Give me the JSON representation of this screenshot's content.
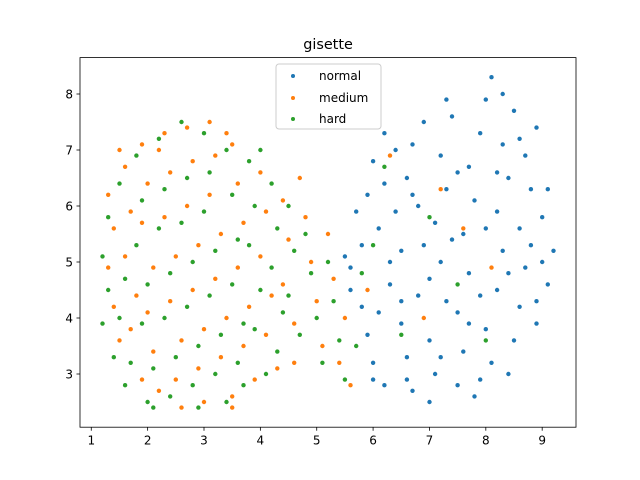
{
  "chart_data": {
    "type": "scatter",
    "title": "gisette",
    "xlabel": "",
    "ylabel": "",
    "xlim": [
      0.8,
      9.6
    ],
    "ylim": [
      2.05,
      8.65
    ],
    "xticks": [
      1,
      2,
      3,
      4,
      5,
      6,
      7,
      8,
      9
    ],
    "yticks": [
      3,
      4,
      5,
      6,
      7,
      8
    ],
    "grid": false,
    "legend_position": "upper center",
    "series": [
      {
        "name": "normal",
        "color": "#1f77b4",
        "points": [
          [
            5.6,
            4.9
          ],
          [
            5.8,
            4.2
          ],
          [
            5.9,
            3.7
          ],
          [
            6.0,
            3.2
          ],
          [
            6.2,
            2.8
          ],
          [
            6.1,
            5.6
          ],
          [
            5.9,
            6.2
          ],
          [
            6.0,
            6.8
          ],
          [
            6.2,
            7.3
          ],
          [
            5.8,
            5.3
          ],
          [
            6.3,
            4.6
          ],
          [
            6.5,
            3.9
          ],
          [
            6.6,
            3.3
          ],
          [
            6.7,
            2.7
          ],
          [
            6.5,
            5.2
          ],
          [
            6.4,
            5.9
          ],
          [
            6.6,
            6.5
          ],
          [
            6.7,
            7.1
          ],
          [
            6.9,
            7.5
          ],
          [
            6.8,
            4.4
          ],
          [
            7.0,
            3.6
          ],
          [
            7.1,
            3.0
          ],
          [
            7.0,
            2.5
          ],
          [
            7.2,
            5.0
          ],
          [
            7.1,
            5.7
          ],
          [
            7.3,
            6.3
          ],
          [
            7.2,
            6.9
          ],
          [
            7.4,
            7.6
          ],
          [
            7.5,
            4.1
          ],
          [
            7.6,
            3.4
          ],
          [
            7.5,
            2.8
          ],
          [
            7.7,
            4.8
          ],
          [
            7.6,
            5.5
          ],
          [
            7.8,
            6.1
          ],
          [
            7.7,
            6.7
          ],
          [
            7.9,
            7.3
          ],
          [
            8.0,
            7.9
          ],
          [
            8.1,
            8.3
          ],
          [
            8.2,
            4.5
          ],
          [
            8.0,
            3.8
          ],
          [
            8.1,
            3.2
          ],
          [
            8.3,
            5.2
          ],
          [
            8.2,
            5.9
          ],
          [
            8.4,
            6.5
          ],
          [
            8.3,
            7.1
          ],
          [
            8.5,
            7.7
          ],
          [
            8.6,
            4.2
          ],
          [
            8.5,
            3.6
          ],
          [
            8.7,
            4.9
          ],
          [
            8.6,
            5.6
          ],
          [
            8.8,
            6.3
          ],
          [
            8.7,
            6.9
          ],
          [
            8.9,
            7.4
          ],
          [
            9.0,
            5.0
          ],
          [
            9.1,
            4.6
          ],
          [
            9.0,
            5.8
          ],
          [
            9.1,
            6.3
          ],
          [
            8.9,
            3.9
          ],
          [
            8.4,
            3.0
          ],
          [
            7.8,
            2.6
          ],
          [
            6.9,
            5.3
          ],
          [
            7.4,
            5.4
          ],
          [
            6.3,
            5.0
          ],
          [
            6.8,
            6.0
          ],
          [
            7.9,
            4.4
          ],
          [
            8.8,
            5.3
          ],
          [
            6.1,
            4.1
          ],
          [
            5.7,
            5.9
          ],
          [
            6.4,
            7.0
          ],
          [
            7.3,
            7.9
          ],
          [
            7.0,
            4.7
          ],
          [
            7.7,
            3.9
          ],
          [
            8.2,
            6.6
          ],
          [
            8.9,
            4.3
          ],
          [
            6.6,
            2.9
          ],
          [
            7.2,
            3.3
          ],
          [
            8.6,
            7.2
          ],
          [
            8.0,
            5.6
          ],
          [
            7.5,
            6.6
          ],
          [
            6.2,
            6.4
          ],
          [
            5.5,
            5.1
          ],
          [
            5.6,
            4.5
          ],
          [
            6.0,
            2.9
          ],
          [
            6.5,
            4.3
          ],
          [
            7.9,
            2.9
          ],
          [
            8.3,
            8.0
          ],
          [
            8.4,
            4.8
          ],
          [
            9.2,
            5.2
          ],
          [
            6.7,
            6.2
          ],
          [
            7.3,
            4.3
          ]
        ]
      },
      {
        "name": "medium",
        "color": "#ff7f0e",
        "points": [
          [
            1.3,
            6.2
          ],
          [
            1.4,
            5.6
          ],
          [
            1.3,
            4.9
          ],
          [
            1.4,
            4.2
          ],
          [
            1.5,
            3.6
          ],
          [
            1.6,
            6.7
          ],
          [
            1.7,
            5.9
          ],
          [
            1.6,
            5.1
          ],
          [
            1.8,
            4.4
          ],
          [
            1.7,
            3.8
          ],
          [
            1.9,
            7.1
          ],
          [
            2.0,
            6.4
          ],
          [
            1.9,
            5.7
          ],
          [
            2.1,
            4.9
          ],
          [
            2.0,
            4.1
          ],
          [
            2.1,
            3.4
          ],
          [
            2.2,
            2.7
          ],
          [
            2.3,
            7.3
          ],
          [
            2.4,
            6.6
          ],
          [
            2.3,
            5.8
          ],
          [
            2.5,
            5.1
          ],
          [
            2.4,
            4.3
          ],
          [
            2.6,
            3.6
          ],
          [
            2.5,
            2.9
          ],
          [
            2.7,
            7.4
          ],
          [
            2.8,
            6.8
          ],
          [
            2.7,
            6.0
          ],
          [
            2.9,
            5.3
          ],
          [
            2.8,
            4.5
          ],
          [
            3.0,
            3.8
          ],
          [
            2.9,
            3.1
          ],
          [
            3.0,
            2.5
          ],
          [
            3.1,
            7.5
          ],
          [
            3.2,
            6.9
          ],
          [
            3.1,
            6.2
          ],
          [
            3.3,
            5.5
          ],
          [
            3.2,
            4.7
          ],
          [
            3.4,
            4.0
          ],
          [
            3.3,
            3.3
          ],
          [
            3.5,
            2.6
          ],
          [
            3.5,
            7.1
          ],
          [
            3.6,
            6.4
          ],
          [
            3.7,
            5.7
          ],
          [
            3.6,
            4.9
          ],
          [
            3.8,
            4.2
          ],
          [
            3.7,
            3.5
          ],
          [
            3.9,
            2.9
          ],
          [
            4.0,
            6.6
          ],
          [
            4.1,
            5.9
          ],
          [
            4.0,
            5.1
          ],
          [
            4.2,
            4.4
          ],
          [
            4.1,
            3.7
          ],
          [
            4.3,
            3.1
          ],
          [
            4.4,
            6.1
          ],
          [
            4.5,
            5.4
          ],
          [
            4.4,
            4.6
          ],
          [
            4.6,
            3.9
          ],
          [
            4.8,
            5.8
          ],
          [
            4.9,
            5.0
          ],
          [
            5.0,
            4.3
          ],
          [
            5.1,
            3.5
          ],
          [
            5.2,
            5.5
          ],
          [
            5.3,
            4.7
          ],
          [
            5.4,
            3.2
          ],
          [
            5.5,
            4.0
          ],
          [
            5.6,
            2.8
          ],
          [
            1.5,
            7.0
          ],
          [
            2.2,
            7.0
          ],
          [
            3.4,
            7.3
          ],
          [
            4.7,
            6.5
          ],
          [
            5.9,
            4.5
          ],
          [
            6.3,
            6.9
          ],
          [
            7.6,
            5.6
          ],
          [
            6.9,
            4.0
          ],
          [
            8.1,
            4.9
          ],
          [
            7.2,
            6.3
          ],
          [
            3.5,
            2.4
          ],
          [
            2.6,
            2.4
          ],
          [
            1.9,
            2.9
          ],
          [
            4.6,
            3.2
          ]
        ]
      },
      {
        "name": "hard",
        "color": "#2ca02c",
        "points": [
          [
            1.2,
            5.1
          ],
          [
            1.3,
            4.5
          ],
          [
            1.2,
            3.9
          ],
          [
            1.4,
            3.3
          ],
          [
            1.3,
            5.8
          ],
          [
            1.5,
            6.4
          ],
          [
            1.6,
            4.7
          ],
          [
            1.5,
            4.0
          ],
          [
            1.7,
            3.2
          ],
          [
            1.6,
            2.8
          ],
          [
            1.8,
            6.9
          ],
          [
            1.9,
            6.1
          ],
          [
            1.8,
            5.3
          ],
          [
            2.0,
            4.6
          ],
          [
            1.9,
            3.9
          ],
          [
            2.1,
            3.1
          ],
          [
            2.0,
            2.5
          ],
          [
            2.2,
            7.2
          ],
          [
            2.3,
            6.3
          ],
          [
            2.2,
            5.6
          ],
          [
            2.4,
            4.8
          ],
          [
            2.3,
            4.0
          ],
          [
            2.5,
            3.3
          ],
          [
            2.4,
            2.6
          ],
          [
            2.6,
            7.5
          ],
          [
            2.7,
            6.5
          ],
          [
            2.6,
            5.7
          ],
          [
            2.8,
            5.0
          ],
          [
            2.7,
            4.2
          ],
          [
            2.9,
            3.5
          ],
          [
            2.8,
            2.8
          ],
          [
            3.0,
            7.3
          ],
          [
            3.1,
            6.6
          ],
          [
            3.0,
            5.9
          ],
          [
            3.2,
            5.2
          ],
          [
            3.1,
            4.4
          ],
          [
            3.3,
            3.7
          ],
          [
            3.2,
            3.0
          ],
          [
            3.4,
            2.5
          ],
          [
            3.4,
            7.0
          ],
          [
            3.5,
            6.2
          ],
          [
            3.6,
            5.4
          ],
          [
            3.5,
            4.6
          ],
          [
            3.7,
            3.9
          ],
          [
            3.6,
            3.2
          ],
          [
            3.8,
            6.8
          ],
          [
            3.9,
            6.0
          ],
          [
            3.8,
            5.3
          ],
          [
            4.0,
            4.5
          ],
          [
            3.9,
            3.8
          ],
          [
            4.1,
            3.0
          ],
          [
            4.2,
            6.4
          ],
          [
            4.3,
            5.6
          ],
          [
            4.2,
            4.9
          ],
          [
            4.4,
            4.1
          ],
          [
            4.3,
            3.4
          ],
          [
            4.5,
            6.0
          ],
          [
            4.6,
            5.2
          ],
          [
            4.5,
            4.4
          ],
          [
            4.7,
            3.7
          ],
          [
            4.8,
            5.5
          ],
          [
            4.9,
            4.8
          ],
          [
            5.0,
            4.0
          ],
          [
            5.1,
            3.2
          ],
          [
            5.2,
            5.0
          ],
          [
            5.3,
            4.3
          ],
          [
            5.4,
            3.6
          ],
          [
            5.5,
            2.9
          ],
          [
            5.7,
            3.5
          ],
          [
            5.8,
            4.8
          ],
          [
            6.0,
            5.3
          ],
          [
            6.2,
            6.7
          ],
          [
            7.0,
            5.8
          ],
          [
            7.5,
            4.6
          ],
          [
            8.0,
            3.6
          ],
          [
            6.5,
            3.7
          ],
          [
            2.1,
            2.4
          ],
          [
            2.9,
            2.4
          ],
          [
            3.7,
            2.8
          ],
          [
            4.0,
            7.0
          ]
        ]
      }
    ]
  }
}
